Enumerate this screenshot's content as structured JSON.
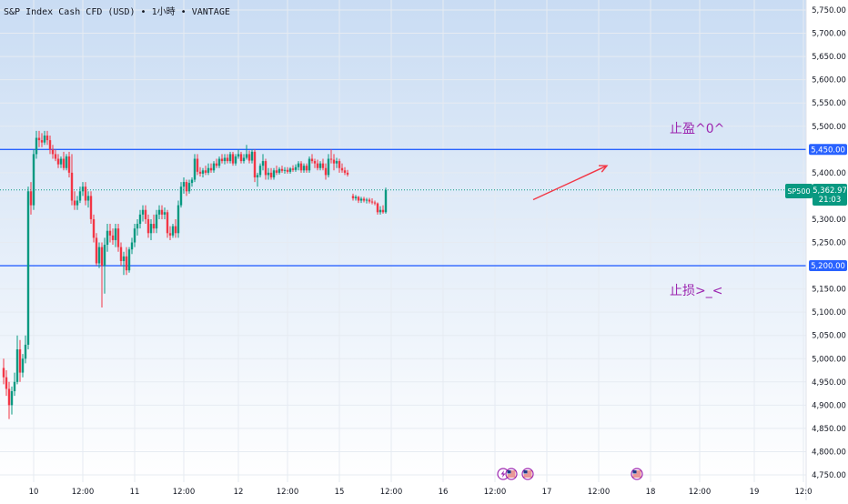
{
  "header": {
    "symbol_title": "S&P Index Cash CFD (USD)",
    "timeframe": "1小時",
    "broker": "VANTAGE",
    "separator": "•"
  },
  "price_label": {
    "ticker": "SP500",
    "price": "5,362.97",
    "countdown": "21:03"
  },
  "annotations": {
    "take_profit": "止盈^0^",
    "stop_loss": "止损>_<"
  },
  "colors": {
    "up": "#089981",
    "down": "#f23645",
    "level_line": "#2962ff",
    "arrow": "#f23645",
    "annotation_text": "#9c27b0",
    "gradient_top": "#c9dcf3",
    "gradient_bottom": "#ffffff"
  },
  "event_icons": [
    {
      "name": "lightning-icon",
      "x_index": 183
    },
    {
      "name": "us-flag-icon",
      "x_index": 186
    },
    {
      "name": "us-flag-icon",
      "x_index": 192
    },
    {
      "name": "us-flag-icon",
      "x_index": 232
    }
  ],
  "chart_data": {
    "type": "candlestick",
    "y_range": [
      4750,
      5750
    ],
    "y_ticks": [
      4750,
      4800,
      4850,
      4900,
      4950,
      5000,
      5050,
      5100,
      5150,
      5200,
      5250,
      5300,
      5350,
      5400,
      5450,
      5500,
      5550,
      5600,
      5650,
      5700,
      5750
    ],
    "y_tick_labels": [
      "4,750.00",
      "4,800.00",
      "4,850.00",
      "4,900.00",
      "4,950.00",
      "5,000.00",
      "5,050.00",
      "5,100.00",
      "5,150.00",
      "5,200.00",
      "5,250.00",
      "5,300.00",
      "5,350.00",
      "5,400.00",
      "5,450.00",
      "5,500.00",
      "5,550.00",
      "5,600.00",
      "5,650.00",
      "5,700.00",
      "5,750.00"
    ],
    "x_range": [
      0,
      292
    ],
    "x_ticks": [
      {
        "label": "10",
        "x": 11
      },
      {
        "label": "12:00",
        "x": 29
      },
      {
        "label": "11",
        "x": 48
      },
      {
        "label": "12:00",
        "x": 66
      },
      {
        "label": "12",
        "x": 86
      },
      {
        "label": "12:00",
        "x": 104
      },
      {
        "label": "15",
        "x": 123
      },
      {
        "label": "12:00",
        "x": 142
      },
      {
        "label": "16",
        "x": 161
      },
      {
        "label": "12:00",
        "x": 180
      },
      {
        "label": "17",
        "x": 199
      },
      {
        "label": "12:00",
        "x": 218
      },
      {
        "label": "18",
        "x": 237
      },
      {
        "label": "12:00",
        "x": 255
      },
      {
        "label": "19",
        "x": 275
      },
      {
        "label": "12:0",
        "x": 293
      }
    ],
    "horizontal_levels": [
      {
        "price": 5450,
        "label": "5,450.00"
      },
      {
        "price": 5200,
        "label": "5,200.00"
      }
    ],
    "current_price": 5362.97,
    "arrow": {
      "from": [
        194,
        5342
      ],
      "to": [
        221,
        5415
      ]
    },
    "candles": [
      {
        "x": 0,
        "o": 4980,
        "h": 5000,
        "l": 4945,
        "c": 4960
      },
      {
        "x": 1,
        "o": 4960,
        "h": 4975,
        "l": 4920,
        "c": 4935
      },
      {
        "x": 2,
        "o": 4935,
        "h": 4950,
        "l": 4870,
        "c": 4900
      },
      {
        "x": 3,
        "o": 4900,
        "h": 4940,
        "l": 4880,
        "c": 4930
      },
      {
        "x": 4,
        "o": 4930,
        "h": 4970,
        "l": 4920,
        "c": 4950
      },
      {
        "x": 5,
        "o": 4950,
        "h": 5050,
        "l": 4945,
        "c": 5020
      },
      {
        "x": 6,
        "o": 5020,
        "h": 5040,
        "l": 4950,
        "c": 4970
      },
      {
        "x": 7,
        "o": 4970,
        "h": 5010,
        "l": 4960,
        "c": 5000
      },
      {
        "x": 8,
        "o": 5000,
        "h": 5050,
        "l": 4990,
        "c": 5030
      },
      {
        "x": 9,
        "o": 5030,
        "h": 5370,
        "l": 5020,
        "c": 5360
      },
      {
        "x": 10,
        "o": 5360,
        "h": 5380,
        "l": 5310,
        "c": 5330
      },
      {
        "x": 11,
        "o": 5330,
        "h": 5450,
        "l": 5320,
        "c": 5440
      },
      {
        "x": 12,
        "o": 5440,
        "h": 5490,
        "l": 5430,
        "c": 5475
      },
      {
        "x": 13,
        "o": 5475,
        "h": 5490,
        "l": 5455,
        "c": 5470
      },
      {
        "x": 14,
        "o": 5470,
        "h": 5485,
        "l": 5455,
        "c": 5465
      },
      {
        "x": 15,
        "o": 5465,
        "h": 5490,
        "l": 5460,
        "c": 5480
      },
      {
        "x": 16,
        "o": 5480,
        "h": 5490,
        "l": 5460,
        "c": 5470
      },
      {
        "x": 17,
        "o": 5470,
        "h": 5480,
        "l": 5440,
        "c": 5450
      },
      {
        "x": 18,
        "o": 5450,
        "h": 5460,
        "l": 5430,
        "c": 5440
      },
      {
        "x": 19,
        "o": 5440,
        "h": 5450,
        "l": 5425,
        "c": 5430
      },
      {
        "x": 20,
        "o": 5430,
        "h": 5440,
        "l": 5410,
        "c": 5418
      },
      {
        "x": 21,
        "o": 5418,
        "h": 5435,
        "l": 5410,
        "c": 5430
      },
      {
        "x": 22,
        "o": 5430,
        "h": 5445,
        "l": 5405,
        "c": 5410
      },
      {
        "x": 23,
        "o": 5410,
        "h": 5440,
        "l": 5405,
        "c": 5435
      },
      {
        "x": 24,
        "o": 5435,
        "h": 5445,
        "l": 5390,
        "c": 5400
      },
      {
        "x": 25,
        "o": 5400,
        "h": 5440,
        "l": 5330,
        "c": 5340
      },
      {
        "x": 26,
        "o": 5340,
        "h": 5360,
        "l": 5320,
        "c": 5330
      },
      {
        "x": 27,
        "o": 5330,
        "h": 5350,
        "l": 5320,
        "c": 5340
      },
      {
        "x": 28,
        "o": 5340,
        "h": 5370,
        "l": 5335,
        "c": 5360
      },
      {
        "x": 29,
        "o": 5360,
        "h": 5380,
        "l": 5350,
        "c": 5370
      },
      {
        "x": 30,
        "o": 5370,
        "h": 5380,
        "l": 5330,
        "c": 5340
      },
      {
        "x": 31,
        "o": 5340,
        "h": 5360,
        "l": 5325,
        "c": 5350
      },
      {
        "x": 32,
        "o": 5350,
        "h": 5360,
        "l": 5290,
        "c": 5300
      },
      {
        "x": 33,
        "o": 5300,
        "h": 5310,
        "l": 5250,
        "c": 5260
      },
      {
        "x": 34,
        "o": 5260,
        "h": 5270,
        "l": 5200,
        "c": 5205
      },
      {
        "x": 35,
        "o": 5205,
        "h": 5250,
        "l": 5195,
        "c": 5240
      },
      {
        "x": 36,
        "o": 5240,
        "h": 5250,
        "l": 5110,
        "c": 5200
      },
      {
        "x": 37,
        "o": 5200,
        "h": 5260,
        "l": 5140,
        "c": 5245
      },
      {
        "x": 38,
        "o": 5245,
        "h": 5290,
        "l": 5230,
        "c": 5275
      },
      {
        "x": 39,
        "o": 5275,
        "h": 5290,
        "l": 5250,
        "c": 5265
      },
      {
        "x": 40,
        "o": 5265,
        "h": 5280,
        "l": 5245,
        "c": 5255
      },
      {
        "x": 41,
        "o": 5255,
        "h": 5290,
        "l": 5240,
        "c": 5280
      },
      {
        "x": 42,
        "o": 5280,
        "h": 5290,
        "l": 5230,
        "c": 5240
      },
      {
        "x": 43,
        "o": 5240,
        "h": 5250,
        "l": 5200,
        "c": 5210
      },
      {
        "x": 44,
        "o": 5210,
        "h": 5230,
        "l": 5180,
        "c": 5220
      },
      {
        "x": 45,
        "o": 5220,
        "h": 5240,
        "l": 5180,
        "c": 5190
      },
      {
        "x": 46,
        "o": 5190,
        "h": 5240,
        "l": 5185,
        "c": 5235
      },
      {
        "x": 47,
        "o": 5235,
        "h": 5260,
        "l": 5225,
        "c": 5250
      },
      {
        "x": 48,
        "o": 5250,
        "h": 5290,
        "l": 5240,
        "c": 5280
      },
      {
        "x": 49,
        "o": 5280,
        "h": 5300,
        "l": 5265,
        "c": 5290
      },
      {
        "x": 50,
        "o": 5290,
        "h": 5320,
        "l": 5280,
        "c": 5310
      },
      {
        "x": 51,
        "o": 5310,
        "h": 5330,
        "l": 5295,
        "c": 5320
      },
      {
        "x": 52,
        "o": 5320,
        "h": 5330,
        "l": 5290,
        "c": 5300
      },
      {
        "x": 53,
        "o": 5300,
        "h": 5310,
        "l": 5260,
        "c": 5270
      },
      {
        "x": 54,
        "o": 5270,
        "h": 5300,
        "l": 5255,
        "c": 5290
      },
      {
        "x": 55,
        "o": 5290,
        "h": 5310,
        "l": 5270,
        "c": 5280
      },
      {
        "x": 56,
        "o": 5280,
        "h": 5320,
        "l": 5270,
        "c": 5310
      },
      {
        "x": 57,
        "o": 5310,
        "h": 5330,
        "l": 5300,
        "c": 5320
      },
      {
        "x": 58,
        "o": 5320,
        "h": 5330,
        "l": 5300,
        "c": 5310
      },
      {
        "x": 59,
        "o": 5310,
        "h": 5325,
        "l": 5300,
        "c": 5315
      },
      {
        "x": 60,
        "o": 5315,
        "h": 5320,
        "l": 5260,
        "c": 5270
      },
      {
        "x": 61,
        "o": 5270,
        "h": 5285,
        "l": 5255,
        "c": 5265
      },
      {
        "x": 62,
        "o": 5265,
        "h": 5290,
        "l": 5260,
        "c": 5285
      },
      {
        "x": 63,
        "o": 5285,
        "h": 5300,
        "l": 5260,
        "c": 5270
      },
      {
        "x": 64,
        "o": 5270,
        "h": 5340,
        "l": 5260,
        "c": 5330
      },
      {
        "x": 65,
        "o": 5330,
        "h": 5380,
        "l": 5325,
        "c": 5370
      },
      {
        "x": 66,
        "o": 5370,
        "h": 5390,
        "l": 5355,
        "c": 5380
      },
      {
        "x": 67,
        "o": 5380,
        "h": 5385,
        "l": 5350,
        "c": 5360
      },
      {
        "x": 68,
        "o": 5360,
        "h": 5385,
        "l": 5355,
        "c": 5378
      },
      {
        "x": 69,
        "o": 5378,
        "h": 5390,
        "l": 5370,
        "c": 5385
      },
      {
        "x": 70,
        "o": 5385,
        "h": 5440,
        "l": 5380,
        "c": 5430
      },
      {
        "x": 71,
        "o": 5430,
        "h": 5440,
        "l": 5395,
        "c": 5402
      },
      {
        "x": 72,
        "o": 5402,
        "h": 5412,
        "l": 5392,
        "c": 5398
      },
      {
        "x": 73,
        "o": 5398,
        "h": 5410,
        "l": 5390,
        "c": 5405
      },
      {
        "x": 74,
        "o": 5405,
        "h": 5415,
        "l": 5395,
        "c": 5400
      },
      {
        "x": 75,
        "o": 5400,
        "h": 5420,
        "l": 5395,
        "c": 5410
      },
      {
        "x": 76,
        "o": 5410,
        "h": 5420,
        "l": 5400,
        "c": 5405
      },
      {
        "x": 77,
        "o": 5405,
        "h": 5425,
        "l": 5400,
        "c": 5420
      },
      {
        "x": 78,
        "o": 5420,
        "h": 5430,
        "l": 5410,
        "c": 5415
      },
      {
        "x": 79,
        "o": 5415,
        "h": 5435,
        "l": 5410,
        "c": 5430
      },
      {
        "x": 80,
        "o": 5430,
        "h": 5440,
        "l": 5420,
        "c": 5425
      },
      {
        "x": 81,
        "o": 5425,
        "h": 5440,
        "l": 5418,
        "c": 5432
      },
      {
        "x": 82,
        "o": 5432,
        "h": 5440,
        "l": 5420,
        "c": 5425
      },
      {
        "x": 83,
        "o": 5425,
        "h": 5445,
        "l": 5420,
        "c": 5440
      },
      {
        "x": 84,
        "o": 5440,
        "h": 5445,
        "l": 5415,
        "c": 5420
      },
      {
        "x": 85,
        "o": 5420,
        "h": 5440,
        "l": 5415,
        "c": 5435
      },
      {
        "x": 86,
        "o": 5435,
        "h": 5450,
        "l": 5430,
        "c": 5440
      },
      {
        "x": 87,
        "o": 5440,
        "h": 5445,
        "l": 5420,
        "c": 5425
      },
      {
        "x": 88,
        "o": 5425,
        "h": 5440,
        "l": 5420,
        "c": 5432
      },
      {
        "x": 89,
        "o": 5432,
        "h": 5460,
        "l": 5428,
        "c": 5440
      },
      {
        "x": 90,
        "o": 5440,
        "h": 5448,
        "l": 5420,
        "c": 5426
      },
      {
        "x": 91,
        "o": 5426,
        "h": 5450,
        "l": 5420,
        "c": 5445
      },
      {
        "x": 92,
        "o": 5445,
        "h": 5450,
        "l": 5380,
        "c": 5390
      },
      {
        "x": 93,
        "o": 5390,
        "h": 5400,
        "l": 5370,
        "c": 5395
      },
      {
        "x": 94,
        "o": 5395,
        "h": 5420,
        "l": 5390,
        "c": 5415
      },
      {
        "x": 95,
        "o": 5415,
        "h": 5440,
        "l": 5405,
        "c": 5425
      },
      {
        "x": 96,
        "o": 5425,
        "h": 5430,
        "l": 5385,
        "c": 5395
      },
      {
        "x": 97,
        "o": 5395,
        "h": 5410,
        "l": 5385,
        "c": 5400
      },
      {
        "x": 98,
        "o": 5400,
        "h": 5410,
        "l": 5385,
        "c": 5390
      },
      {
        "x": 99,
        "o": 5390,
        "h": 5410,
        "l": 5385,
        "c": 5405
      },
      {
        "x": 100,
        "o": 5405,
        "h": 5415,
        "l": 5395,
        "c": 5400
      },
      {
        "x": 101,
        "o": 5400,
        "h": 5412,
        "l": 5396,
        "c": 5408
      },
      {
        "x": 102,
        "o": 5408,
        "h": 5415,
        "l": 5400,
        "c": 5404
      },
      {
        "x": 103,
        "o": 5404,
        "h": 5412,
        "l": 5398,
        "c": 5406
      },
      {
        "x": 104,
        "o": 5406,
        "h": 5412,
        "l": 5398,
        "c": 5402
      },
      {
        "x": 105,
        "o": 5402,
        "h": 5412,
        "l": 5398,
        "c": 5409
      },
      {
        "x": 106,
        "o": 5409,
        "h": 5416,
        "l": 5402,
        "c": 5406
      },
      {
        "x": 107,
        "o": 5406,
        "h": 5418,
        "l": 5402,
        "c": 5412
      },
      {
        "x": 108,
        "o": 5412,
        "h": 5425,
        "l": 5405,
        "c": 5420
      },
      {
        "x": 109,
        "o": 5420,
        "h": 5425,
        "l": 5400,
        "c": 5405
      },
      {
        "x": 110,
        "o": 5405,
        "h": 5420,
        "l": 5400,
        "c": 5415
      },
      {
        "x": 111,
        "o": 5415,
        "h": 5420,
        "l": 5400,
        "c": 5405
      },
      {
        "x": 112,
        "o": 5405,
        "h": 5435,
        "l": 5400,
        "c": 5430
      },
      {
        "x": 113,
        "o": 5430,
        "h": 5440,
        "l": 5420,
        "c": 5425
      },
      {
        "x": 114,
        "o": 5425,
        "h": 5430,
        "l": 5410,
        "c": 5420
      },
      {
        "x": 115,
        "o": 5420,
        "h": 5428,
        "l": 5405,
        "c": 5410
      },
      {
        "x": 116,
        "o": 5410,
        "h": 5425,
        "l": 5405,
        "c": 5420
      },
      {
        "x": 117,
        "o": 5420,
        "h": 5430,
        "l": 5405,
        "c": 5410
      },
      {
        "x": 118,
        "o": 5410,
        "h": 5420,
        "l": 5385,
        "c": 5395
      },
      {
        "x": 119,
        "o": 5395,
        "h": 5440,
        "l": 5390,
        "c": 5430
      },
      {
        "x": 120,
        "o": 5430,
        "h": 5450,
        "l": 5420,
        "c": 5428
      },
      {
        "x": 121,
        "o": 5428,
        "h": 5440,
        "l": 5405,
        "c": 5420
      },
      {
        "x": 122,
        "o": 5420,
        "h": 5432,
        "l": 5410,
        "c": 5425
      },
      {
        "x": 123,
        "o": 5425,
        "h": 5430,
        "l": 5400,
        "c": 5410
      },
      {
        "x": 124,
        "o": 5410,
        "h": 5420,
        "l": 5400,
        "c": 5405
      },
      {
        "x": 125,
        "o": 5405,
        "h": 5412,
        "l": 5395,
        "c": 5400
      },
      {
        "x": 126,
        "o": 5400,
        "h": 5406,
        "l": 5392,
        "c": 5396
      },
      {
        "x": 128,
        "o": 5350,
        "h": 5355,
        "l": 5340,
        "c": 5345
      },
      {
        "x": 129,
        "o": 5345,
        "h": 5352,
        "l": 5340,
        "c": 5348
      },
      {
        "x": 130,
        "o": 5348,
        "h": 5350,
        "l": 5335,
        "c": 5340
      },
      {
        "x": 131,
        "o": 5340,
        "h": 5348,
        "l": 5335,
        "c": 5344
      },
      {
        "x": 132,
        "o": 5344,
        "h": 5348,
        "l": 5336,
        "c": 5340
      },
      {
        "x": 133,
        "o": 5340,
        "h": 5346,
        "l": 5334,
        "c": 5342
      },
      {
        "x": 134,
        "o": 5342,
        "h": 5346,
        "l": 5334,
        "c": 5338
      },
      {
        "x": 135,
        "o": 5338,
        "h": 5345,
        "l": 5332,
        "c": 5336
      },
      {
        "x": 136,
        "o": 5336,
        "h": 5340,
        "l": 5330,
        "c": 5334
      },
      {
        "x": 137,
        "o": 5334,
        "h": 5336,
        "l": 5310,
        "c": 5315
      },
      {
        "x": 138,
        "o": 5315,
        "h": 5328,
        "l": 5310,
        "c": 5320
      },
      {
        "x": 139,
        "o": 5320,
        "h": 5330,
        "l": 5312,
        "c": 5315
      },
      {
        "x": 140,
        "o": 5315,
        "h": 5368,
        "l": 5312,
        "c": 5362.97
      }
    ]
  }
}
